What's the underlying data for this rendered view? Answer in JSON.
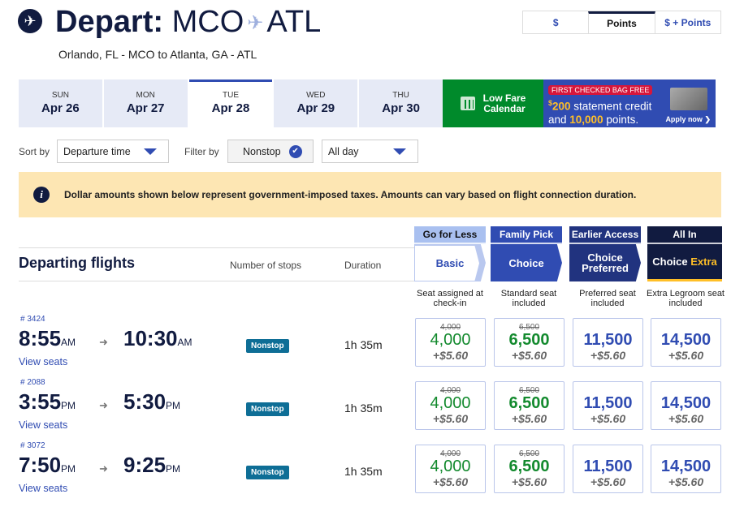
{
  "header": {
    "title_bold": "Depart:",
    "origin": "MCO",
    "destination": "ATL",
    "subtitle": "Orlando, FL - MCO to Atlanta, GA - ATL"
  },
  "currency": [
    "$",
    "Points",
    "$ + Points"
  ],
  "currency_selected": "Points",
  "dates": [
    {
      "day": "SUN",
      "date": "Apr 26"
    },
    {
      "day": "MON",
      "date": "Apr 27"
    },
    {
      "day": "TUE",
      "date": "Apr 28",
      "selected": true
    },
    {
      "day": "WED",
      "date": "Apr 29"
    },
    {
      "day": "THU",
      "date": "Apr 30"
    }
  ],
  "low_fare": {
    "line1": "Low Fare",
    "line2": "Calendar"
  },
  "ad": {
    "tag": "FIRST CHECKED BAG FREE",
    "sup": "$",
    "amount": "200",
    "text1": " statement credit",
    "text2a": "and ",
    "points": "10,000",
    "text2b": " points.",
    "apply": "Apply now"
  },
  "sort": {
    "label": "Sort by",
    "value": "Departure time"
  },
  "filter": {
    "label": "Filter by",
    "nonstop": "Nonstop",
    "time": "All day"
  },
  "info": "Dollar amounts shown below represent government-imposed taxes. Amounts can vary based on flight connection duration.",
  "table": {
    "title": "Departing flights",
    "stops_header": "Number of stops",
    "duration_header": "Duration"
  },
  "fares": [
    {
      "tagline": "Go for Less",
      "name": "Basic",
      "desc": "Seat assigned at check-in"
    },
    {
      "tagline": "Family Pick",
      "name": "Choice",
      "desc": "Standard seat included"
    },
    {
      "tagline": "Earlier Access",
      "name": "Choice Preferred",
      "desc": "Preferred seat included"
    },
    {
      "tagline": "All In",
      "name": "Choice",
      "name_extra": "Extra",
      "desc": "Extra Legroom seat included"
    }
  ],
  "colors": {
    "navy": "#111b40",
    "blue": "#304cb2",
    "green": "#138a2e",
    "yellow": "#ffbf27"
  },
  "flights": [
    {
      "number": "# 3424",
      "dep": "8:55",
      "dep_ampm": "AM",
      "arr": "10:30",
      "arr_ampm": "AM",
      "stops": "Nonstop",
      "duration": "1h 35m",
      "view": "View seats",
      "prices": [
        {
          "old": "4,000",
          "points": "4,000",
          "tax": "+$5.60"
        },
        {
          "old": "6,500",
          "points": "6,500",
          "tax": "+$5.60"
        },
        {
          "old": "",
          "points": "11,500",
          "tax": "+$5.60"
        },
        {
          "old": "",
          "points": "14,500",
          "tax": "+$5.60"
        }
      ]
    },
    {
      "number": "# 2088",
      "dep": "3:55",
      "dep_ampm": "PM",
      "arr": "5:30",
      "arr_ampm": "PM",
      "stops": "Nonstop",
      "duration": "1h 35m",
      "view": "View seats",
      "prices": [
        {
          "old": "4,000",
          "points": "4,000",
          "tax": "+$5.60"
        },
        {
          "old": "6,500",
          "points": "6,500",
          "tax": "+$5.60"
        },
        {
          "old": "",
          "points": "11,500",
          "tax": "+$5.60"
        },
        {
          "old": "",
          "points": "14,500",
          "tax": "+$5.60"
        }
      ]
    },
    {
      "number": "# 3072",
      "dep": "7:50",
      "dep_ampm": "PM",
      "arr": "9:25",
      "arr_ampm": "PM",
      "stops": "Nonstop",
      "duration": "1h 35m",
      "view": "View seats",
      "prices": [
        {
          "old": "4,000",
          "points": "4,000",
          "tax": "+$5.60"
        },
        {
          "old": "6,500",
          "points": "6,500",
          "tax": "+$5.60"
        },
        {
          "old": "",
          "points": "11,500",
          "tax": "+$5.60"
        },
        {
          "old": "",
          "points": "14,500",
          "tax": "+$5.60"
        }
      ]
    }
  ]
}
